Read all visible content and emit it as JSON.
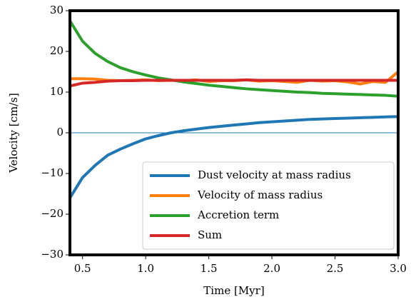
{
  "chart_data": {
    "type": "line",
    "x_label": "Time [Myr]",
    "y_label": "Velocity [cm/s]",
    "x": [
      0.4,
      0.5,
      0.6,
      0.7,
      0.8,
      0.9,
      1.0,
      1.1,
      1.2,
      1.3,
      1.4,
      1.5,
      1.6,
      1.7,
      1.8,
      1.9,
      2.0,
      2.1,
      2.2,
      2.3,
      2.4,
      2.5,
      2.6,
      2.7,
      2.8,
      2.9,
      3.0
    ],
    "series": [
      {
        "name": "Dust velocity at mass radius",
        "color": "#1f77b4",
        "values": [
          -16,
          -11,
          -8,
          -5.5,
          -4,
          -2.7,
          -1.5,
          -0.7,
          0,
          0.5,
          0.9,
          1.3,
          1.6,
          1.9,
          2.2,
          2.5,
          2.7,
          2.9,
          3.1,
          3.3,
          3.4,
          3.5,
          3.6,
          3.7,
          3.8,
          3.9,
          4.0
        ]
      },
      {
        "name": "Velocity of mass radius",
        "color": "#ff7f0e",
        "values": [
          13.3,
          13.3,
          13.2,
          12.9,
          12.8,
          12.9,
          13.0,
          12.8,
          12.9,
          12.8,
          13.0,
          12.6,
          12.8,
          12.8,
          13.0,
          12.7,
          12.8,
          12.6,
          12.4,
          12.9,
          12.7,
          12.8,
          12.5,
          12.0,
          12.6,
          12.4,
          15.0
        ]
      },
      {
        "name": "Accretion term",
        "color": "#2ca02c",
        "values": [
          27.5,
          22.5,
          19.5,
          17.5,
          16,
          15,
          14.2,
          13.5,
          13,
          12.5,
          12.1,
          11.7,
          11.4,
          11.1,
          10.8,
          10.6,
          10.4,
          10.2,
          10.0,
          9.9,
          9.7,
          9.6,
          9.5,
          9.4,
          9.3,
          9.2,
          9.0
        ]
      },
      {
        "name": "Sum",
        "color": "#d62728",
        "values": [
          11.5,
          12.2,
          12.4,
          12.7,
          12.8,
          12.8,
          12.9,
          12.9,
          12.9,
          12.9,
          12.9,
          12.9,
          12.9,
          12.9,
          13.0,
          12.9,
          12.9,
          12.9,
          12.9,
          12.9,
          12.9,
          12.9,
          12.9,
          12.9,
          12.9,
          12.9,
          12.9
        ]
      }
    ],
    "xlim": [
      0.4,
      3.0
    ],
    "xticks": [
      0.5,
      {
        "value": 1,
        "label": "1.0"
      },
      1.5,
      {
        "value": 2,
        "label": "2.0"
      },
      2.5,
      {
        "value": 3,
        "label": "3.0"
      }
    ],
    "ylim": [
      -30,
      30
    ],
    "yticks": [
      {
        "value": -30,
        "label": "−30"
      },
      {
        "value": -20,
        "label": "−20"
      },
      {
        "value": -10,
        "label": "−10"
      },
      0,
      10,
      20,
      30
    ],
    "hline": {
      "value": 0,
      "color": "#1f77b4"
    },
    "legend": "lower right"
  }
}
